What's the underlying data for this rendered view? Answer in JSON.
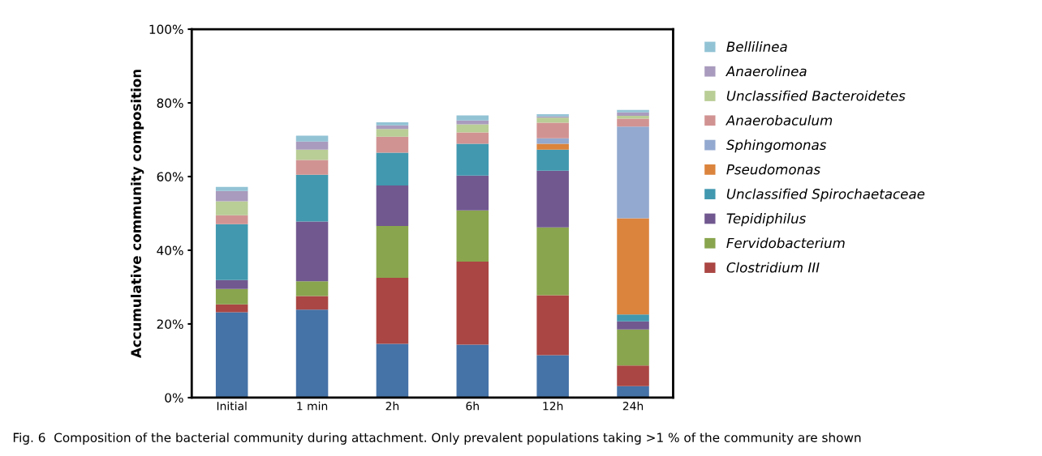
{
  "chart_data": {
    "type": "bar",
    "stacked": true,
    "ylabel": "Accumulative community composition",
    "categories": [
      "Initial",
      "1 min",
      "2h",
      "6h",
      "12h",
      "24h"
    ],
    "ylim": [
      0,
      100
    ],
    "yticks": [
      {
        "value": 0,
        "label": "0%"
      },
      {
        "value": 20,
        "label": "20%"
      },
      {
        "value": 40,
        "label": "40%"
      },
      {
        "value": 60,
        "label": "60%"
      },
      {
        "value": 80,
        "label": "80%"
      },
      {
        "value": 100,
        "label": "100%"
      }
    ],
    "grid": false,
    "legend": "right",
    "series": [
      {
        "color": "#4572a7",
        "values": [
          23.2,
          23.9,
          14.6,
          14.4,
          11.5,
          3.1
        ]
      },
      {
        "name": "Clostridium III",
        "color": "#aa4643",
        "values": [
          2.1,
          3.7,
          17.9,
          22.5,
          16.3,
          5.6
        ]
      },
      {
        "name": "Fervidobacterium",
        "color": "#89a54e",
        "values": [
          4.2,
          4.0,
          14.1,
          13.9,
          18.4,
          9.8
        ]
      },
      {
        "name": "Tepidiphilus",
        "color": "#71588f",
        "values": [
          2.4,
          16.2,
          11.0,
          9.5,
          15.4,
          2.2
        ]
      },
      {
        "name": "Unclassified Spirochaetaceae",
        "color": "#4198af",
        "values": [
          15.2,
          12.7,
          8.9,
          8.6,
          5.7,
          1.9
        ]
      },
      {
        "name": "Pseudomonas",
        "color": "#db843d",
        "values": [
          0,
          0,
          0,
          0,
          1.6,
          26.1
        ]
      },
      {
        "name": "Sphingomonas",
        "color": "#93a9cf",
        "values": [
          0,
          0,
          0,
          0,
          1.5,
          24.9
        ]
      },
      {
        "name": "Anaerobaculum",
        "color": "#d19392",
        "values": [
          2.4,
          4.0,
          4.3,
          3.1,
          4.2,
          2.1
        ]
      },
      {
        "name": "Unclassified Bacteroidetes",
        "color": "#b9cd96",
        "values": [
          3.8,
          2.8,
          2.1,
          2.2,
          1.4,
          0.8
        ]
      },
      {
        "name": "Anaerolinea",
        "color": "#a99bbd",
        "values": [
          2.8,
          2.2,
          1.0,
          1.0,
          0.3,
          0.9
        ]
      },
      {
        "name": "Bellilinea",
        "color": "#92c3d5",
        "values": [
          1.1,
          1.6,
          0.8,
          1.4,
          0.6,
          0.7
        ]
      }
    ],
    "annotations": [
      "Fig. 6  Composition of the bacterial community during attachment. Only prevalent populations taking >1 % of the community are shown"
    ]
  }
}
